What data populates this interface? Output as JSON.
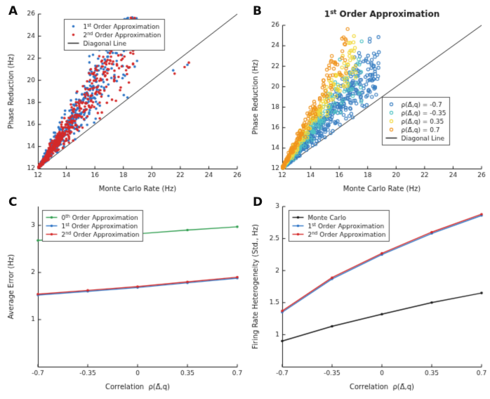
{
  "figure": {
    "background": "#ffffff",
    "ink_color": "#1a1a1a"
  },
  "chart_data": [
    {
      "panel_label": "A",
      "type": "scatter",
      "title": "",
      "xlabel": "Monte Carlo Rate (Hz)",
      "ylabel": "Phase Reduction (Hz)",
      "xlim": [
        12,
        26
      ],
      "ylim": [
        12,
        26
      ],
      "xticks": [
        12,
        14,
        16,
        18,
        20,
        22,
        24,
        26
      ],
      "yticks": [
        12,
        14,
        16,
        18,
        20,
        22,
        24,
        26
      ],
      "grid": false,
      "diagonal_line": true,
      "legend": {
        "x": 0.13,
        "y": 0.03,
        "items": [
          {
            "label": "1st Order Approximation",
            "marker": "dot",
            "color": "#2e75c6"
          },
          {
            "label": "2nd Order Approximation",
            "marker": "dot",
            "color": "#d42a2a"
          },
          {
            "label": "Diagonal Line",
            "marker": "line",
            "color": "#1a1a1a"
          }
        ]
      },
      "series": [
        {
          "name": "1st Order Approximation",
          "color": "#2e75c6",
          "marker": "dot",
          "cloud": {
            "n": 520,
            "x_min": 12.05,
            "x_max": 19.0,
            "slope": 1.85,
            "spread": 0.2,
            "power": 1.8,
            "seed": 7
          },
          "outliers": [
            [
              21.5,
              20.9
            ],
            [
              22.5,
              21.4
            ],
            [
              16.1,
              21.2
            ]
          ]
        },
        {
          "name": "2nd Order Approximation",
          "color": "#d42a2a",
          "marker": "dot",
          "cloud": {
            "n": 520,
            "x_min": 12.05,
            "x_max": 18.8,
            "slope": 1.8,
            "spread": 0.18,
            "power": 1.8,
            "seed": 21
          },
          "outliers": [
            [
              21.6,
              20.6
            ],
            [
              22.3,
              21.2
            ],
            [
              22.6,
              21.6
            ],
            [
              15.8,
              20.6
            ]
          ]
        }
      ]
    },
    {
      "panel_label": "B",
      "type": "scatter",
      "title": "1st Order Approximation",
      "xlabel": "Monte Carlo Rate (Hz)",
      "ylabel": "Phase Reduction (Hz)",
      "xlim": [
        12,
        26
      ],
      "ylim": [
        12,
        26
      ],
      "xticks": [
        12,
        14,
        16,
        18,
        20,
        22,
        24,
        26
      ],
      "yticks": [
        12,
        14,
        16,
        18,
        20,
        22,
        24,
        26
      ],
      "grid": false,
      "diagonal_line": true,
      "legend": {
        "x": 0.5,
        "y": 0.5,
        "items": [
          {
            "label": "ρ(Δ̄,q) = -0.7",
            "marker": "circle",
            "color": "#3a7fc2"
          },
          {
            "label": "ρ(Δ̄,q) = -0.35",
            "marker": "circle",
            "color": "#4fc3c3"
          },
          {
            "label": "ρ(Δ̄,q) = 0.35",
            "marker": "circle",
            "color": "#f2d93b"
          },
          {
            "label": "ρ(Δ̄,q) = 0.7",
            "marker": "circle",
            "color": "#f0941e"
          },
          {
            "label": "Diagonal Line",
            "marker": "line",
            "color": "#1a1a1a"
          }
        ]
      },
      "series": [
        {
          "name": "ρ(Δ̄,q) = -0.7",
          "color": "#3a7fc2",
          "marker": "circle",
          "cloud": {
            "n": 650,
            "x_min": 12.05,
            "x_max": 18.8,
            "slope": 1.55,
            "spread": 0.16,
            "power": 2.0,
            "seed": 3
          }
        },
        {
          "name": "ρ(Δ̄,q) = -0.35",
          "color": "#4fc3c3",
          "marker": "circle",
          "cloud": {
            "n": 240,
            "x_min": 12.05,
            "x_max": 17.6,
            "slope": 1.85,
            "spread": 0.13,
            "power": 1.9,
            "seed": 15
          }
        },
        {
          "name": "ρ(Δ̄,q) = 0.35",
          "color": "#f2d93b",
          "marker": "circle",
          "cloud": {
            "n": 240,
            "x_min": 12.05,
            "x_max": 17.2,
            "slope": 2.2,
            "spread": 0.12,
            "power": 1.9,
            "seed": 31
          }
        },
        {
          "name": "ρ(Δ̄,q) = 0.7",
          "color": "#f0941e",
          "marker": "circle",
          "cloud": {
            "n": 180,
            "x_min": 12.05,
            "x_max": 16.6,
            "slope": 2.6,
            "spread": 0.11,
            "power": 1.9,
            "seed": 44
          }
        }
      ]
    },
    {
      "panel_label": "C",
      "type": "line",
      "title": "",
      "xlabel": "Correlation  ρ(Δ̄,q)",
      "ylabel": "Average Error (Hz)",
      "xlim": [
        -0.7,
        0.7
      ],
      "ylim": [
        0,
        3.4
      ],
      "xticks": [
        -0.7,
        -0.35,
        0,
        0.35,
        0.7
      ],
      "yticks": [
        1,
        2,
        3
      ],
      "grid": false,
      "diagonal_line": false,
      "legend": {
        "x": 0.02,
        "y": 0.02,
        "items": [
          {
            "label": "0th Order Approximation",
            "marker": "line-dot",
            "color": "#2f9e4f"
          },
          {
            "label": "1st Order Approximation",
            "marker": "line-dot",
            "color": "#2e75c6"
          },
          {
            "label": "2nd Order Approximation",
            "marker": "line-dot",
            "color": "#d42a2a"
          }
        ]
      },
      "x": [
        -0.7,
        -0.35,
        0,
        0.35,
        0.7
      ],
      "series": [
        {
          "name": "0th Order Approximation",
          "color": "#2f9e4f",
          "values": [
            2.68,
            2.75,
            2.82,
            2.9,
            2.97
          ]
        },
        {
          "name": "1st Order Approximation",
          "color": "#2e75c6",
          "values": [
            1.52,
            1.6,
            1.68,
            1.78,
            1.88
          ]
        },
        {
          "name": "2nd Order Approximation",
          "color": "#d42a2a",
          "values": [
            1.54,
            1.62,
            1.7,
            1.8,
            1.9
          ]
        }
      ]
    },
    {
      "panel_label": "D",
      "type": "line",
      "title": "",
      "xlabel": "Correlation  ρ(Δ̄,q)",
      "ylabel": "Firing Rate Heterogeneity (Std., Hz)",
      "xlim": [
        -0.7,
        0.7
      ],
      "ylim": [
        0.5,
        3
      ],
      "xticks": [
        -0.7,
        -0.35,
        0,
        0.35,
        0.7
      ],
      "yticks": [
        1,
        1.5,
        2,
        2.5,
        3
      ],
      "grid": false,
      "diagonal_line": false,
      "legend": {
        "x": 0.03,
        "y": 0.02,
        "items": [
          {
            "label": "Monte Carlo",
            "marker": "line-dot",
            "color": "#1a1a1a"
          },
          {
            "label": "1st Order Approximation",
            "marker": "line-dot",
            "color": "#2e75c6"
          },
          {
            "label": "2nd Order Approximation",
            "marker": "line-dot",
            "color": "#d42a2a"
          }
        ]
      },
      "x": [
        -0.7,
        -0.35,
        0,
        0.35,
        0.7
      ],
      "series": [
        {
          "name": "Monte Carlo",
          "color": "#1a1a1a",
          "values": [
            0.9,
            1.13,
            1.32,
            1.5,
            1.65
          ]
        },
        {
          "name": "1st Order Approximation",
          "color": "#2e75c6",
          "values": [
            1.35,
            1.87,
            2.25,
            2.58,
            2.86
          ]
        },
        {
          "name": "2nd Order Approximation",
          "color": "#d42a2a",
          "values": [
            1.37,
            1.89,
            2.27,
            2.6,
            2.88
          ]
        }
      ]
    }
  ]
}
